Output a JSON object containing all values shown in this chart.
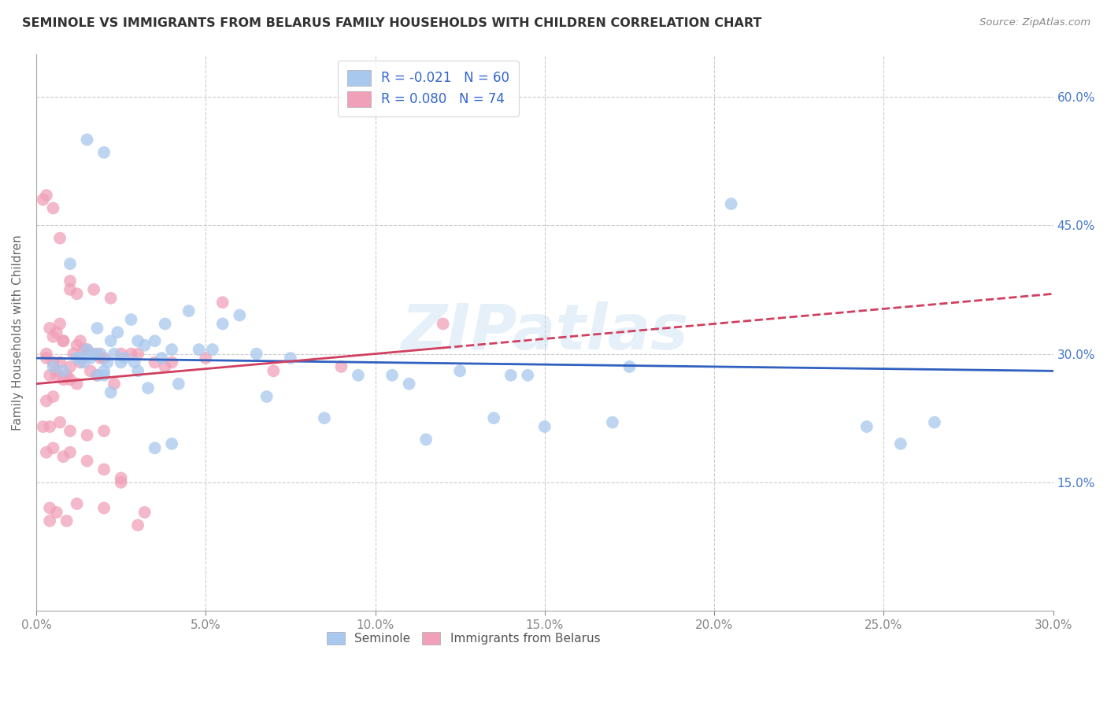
{
  "title": "SEMINOLE VS IMMIGRANTS FROM BELARUS FAMILY HOUSEHOLDS WITH CHILDREN CORRELATION CHART",
  "source": "Source: ZipAtlas.com",
  "ylabel": "Family Households with Children",
  "xlim": [
    0.0,
    30.0
  ],
  "ylim": [
    0.0,
    65.0
  ],
  "legend_r1": "R = -0.021",
  "legend_n1": "N = 60",
  "legend_r2": "R = 0.080",
  "legend_n2": "N = 74",
  "legend_label1": "Seminole",
  "legend_label2": "Immigrants from Belarus",
  "color_blue": "#A8C8EE",
  "color_pink": "#F0A0B8",
  "color_line_blue": "#3060C0",
  "color_line_pink": "#D04060",
  "watermark": "ZIPatlas",
  "seminole_x": [
    1.8,
    2.8,
    2.2,
    2.5,
    2.0,
    1.5,
    1.6,
    1.7,
    2.1,
    2.3,
    1.0,
    1.9,
    2.4,
    3.2,
    3.8,
    4.5,
    3.0,
    5.5,
    6.0,
    1.2,
    1.4,
    2.6,
    3.5,
    4.0,
    2.9,
    4.8,
    5.2,
    3.7,
    6.5,
    7.5,
    9.5,
    11.0,
    12.5,
    14.0,
    15.0,
    17.0,
    0.5,
    0.8,
    1.3,
    2.0,
    3.0,
    2.2,
    3.3,
    1.8,
    4.2,
    6.8,
    8.5,
    13.5,
    20.5,
    24.5,
    25.5,
    26.5,
    3.5,
    4.0,
    10.5,
    11.5,
    14.5,
    17.5,
    2.0,
    1.5
  ],
  "seminole_y": [
    33.0,
    34.0,
    31.5,
    29.0,
    28.0,
    30.5,
    29.5,
    30.0,
    29.0,
    30.0,
    40.5,
    30.0,
    32.5,
    31.0,
    33.5,
    35.0,
    31.5,
    33.5,
    34.5,
    29.5,
    29.0,
    29.5,
    31.5,
    30.5,
    29.0,
    30.5,
    30.5,
    29.5,
    30.0,
    29.5,
    27.5,
    26.5,
    28.0,
    27.5,
    21.5,
    22.0,
    28.5,
    28.0,
    29.5,
    27.5,
    28.0,
    25.5,
    26.0,
    27.5,
    26.5,
    25.0,
    22.5,
    22.5,
    47.5,
    21.5,
    19.5,
    22.0,
    19.0,
    19.5,
    27.5,
    20.0,
    27.5,
    28.5,
    53.5,
    55.0
  ],
  "belarus_x": [
    0.3,
    0.5,
    0.7,
    0.8,
    1.0,
    0.4,
    0.6,
    0.9,
    1.1,
    1.2,
    1.3,
    0.2,
    0.3,
    0.5,
    0.7,
    1.0,
    1.5,
    1.8,
    2.0,
    2.5,
    3.0,
    1.2,
    1.7,
    2.2,
    0.4,
    0.6,
    0.8,
    1.4,
    1.9,
    2.8,
    0.3,
    0.5,
    1.0,
    1.6,
    2.3,
    3.5,
    0.2,
    0.4,
    0.7,
    1.0,
    1.5,
    2.0,
    0.6,
    0.8,
    1.2,
    1.8,
    4.0,
    5.0,
    7.0,
    9.0,
    12.0,
    0.3,
    0.5,
    0.8,
    1.0,
    1.5,
    2.0,
    2.5,
    3.0,
    0.4,
    0.6,
    1.2,
    2.0,
    3.2,
    5.5,
    0.3,
    0.5,
    0.7,
    1.0,
    1.3,
    3.8,
    0.4,
    0.9,
    2.5
  ],
  "belarus_y": [
    30.0,
    32.0,
    33.5,
    31.5,
    37.5,
    27.5,
    28.0,
    27.5,
    30.0,
    31.0,
    31.5,
    48.0,
    48.5,
    47.0,
    43.5,
    38.5,
    30.5,
    30.0,
    29.5,
    30.0,
    30.0,
    37.0,
    37.5,
    36.5,
    33.0,
    32.5,
    31.5,
    30.5,
    29.5,
    30.0,
    24.5,
    25.0,
    27.0,
    28.0,
    26.5,
    29.0,
    21.5,
    21.5,
    22.0,
    21.0,
    20.5,
    21.0,
    27.5,
    27.0,
    26.5,
    27.5,
    29.0,
    29.5,
    28.0,
    28.5,
    33.5,
    18.5,
    19.0,
    18.0,
    18.5,
    17.5,
    16.5,
    15.5,
    10.0,
    12.0,
    11.5,
    12.5,
    12.0,
    11.5,
    36.0,
    29.5,
    29.0,
    29.0,
    28.5,
    29.0,
    28.5,
    10.5,
    10.5,
    15.0
  ]
}
